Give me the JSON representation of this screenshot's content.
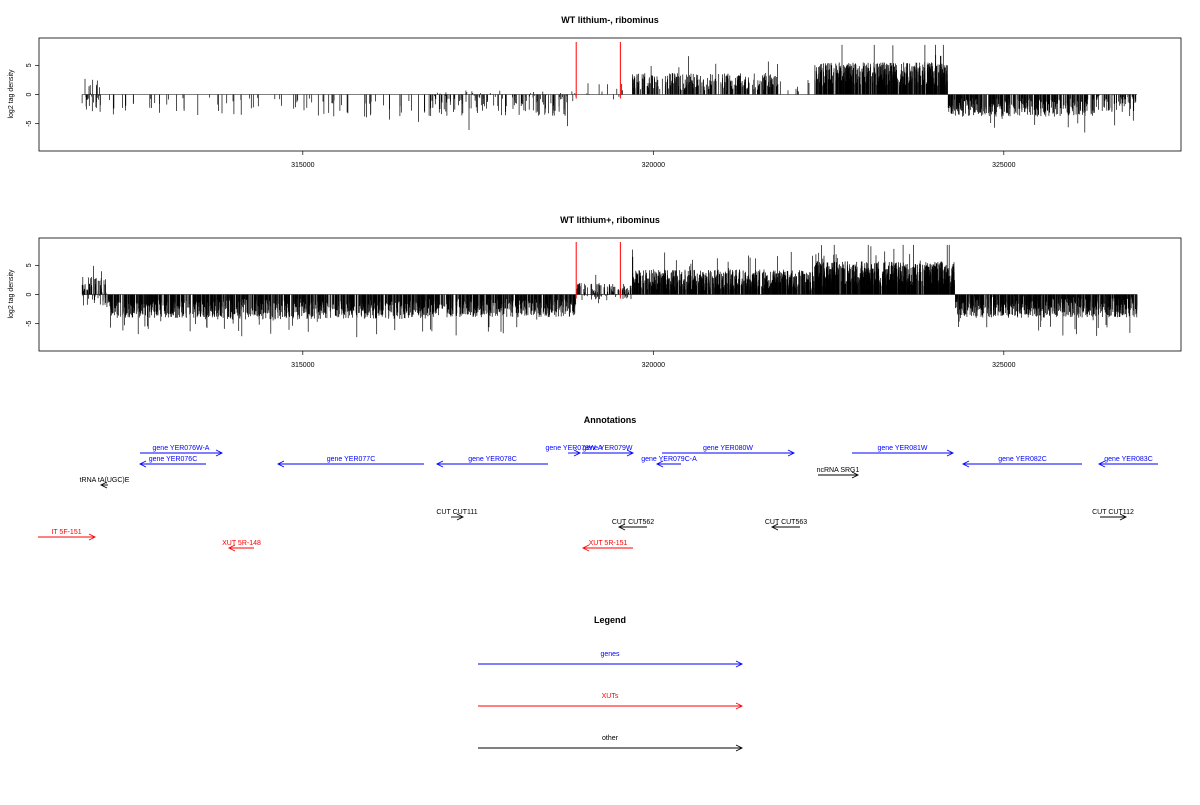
{
  "colors": {
    "gene": "#0000ff",
    "xut": "#ff0000",
    "other": "#000000",
    "marker": "#ff0000",
    "bars": "#000000"
  },
  "chart_data": [
    {
      "type": "bar",
      "title": "WT lithium-, ribominus",
      "ylabel": "log2 tag density",
      "x_ticks": [
        315000,
        320000,
        325000
      ],
      "y_ticks": [
        -5,
        0,
        5
      ],
      "xlim": [
        311600,
        327600
      ],
      "ylim": [
        -9,
        9
      ],
      "markers_x": [
        318900,
        319530
      ],
      "segments": [
        {
          "x0": 311850,
          "x1": 312100,
          "mean": 0,
          "amp": 3.5,
          "density": 3
        },
        {
          "x0": 312100,
          "x1": 313600,
          "mean": -2.2,
          "amp": 1.6,
          "density": 1
        },
        {
          "x0": 313600,
          "x1": 315200,
          "mean": -2.0,
          "amp": 1.5,
          "density": 1
        },
        {
          "x0": 315200,
          "x1": 316800,
          "mean": -2.5,
          "amp": 1.5,
          "density": 1
        },
        {
          "x0": 316800,
          "x1": 318900,
          "mean": -1.5,
          "amp": 2.2,
          "density": 2
        },
        {
          "x0": 318900,
          "x1": 319700,
          "mean": 0.5,
          "amp": 1.5,
          "density": 1
        },
        {
          "x0": 319700,
          "x1": 321800,
          "mean": 2.2,
          "amp": 1.5,
          "density": 4
        },
        {
          "x0": 321800,
          "x1": 322300,
          "mean": 1.5,
          "amp": 1.0,
          "density": 1
        },
        {
          "x0": 322300,
          "x1": 324200,
          "mean": 3.5,
          "amp": 2.0,
          "density": 8
        },
        {
          "x0": 324200,
          "x1": 326300,
          "mean": -2.2,
          "amp": 1.6,
          "density": 5
        },
        {
          "x0": 326300,
          "x1": 326900,
          "mean": -1.5,
          "amp": 1.5,
          "density": 3
        }
      ]
    },
    {
      "type": "bar",
      "title": "WT lithium+, ribominus",
      "ylabel": "log2 tag density",
      "x_ticks": [
        315000,
        320000,
        325000
      ],
      "y_ticks": [
        -5,
        0,
        5
      ],
      "xlim": [
        311600,
        327600
      ],
      "ylim": [
        -9,
        9
      ],
      "markers_x": [
        318900,
        319530
      ],
      "segments": [
        {
          "x0": 311850,
          "x1": 312200,
          "mean": 0.5,
          "amp": 2.5,
          "density": 6
        },
        {
          "x0": 312200,
          "x1": 313600,
          "mean": -2.5,
          "amp": 1.5,
          "density": 6
        },
        {
          "x0": 313600,
          "x1": 315200,
          "mean": -2.5,
          "amp": 1.8,
          "density": 6
        },
        {
          "x0": 315200,
          "x1": 316800,
          "mean": -2.6,
          "amp": 1.6,
          "density": 6
        },
        {
          "x0": 316800,
          "x1": 318900,
          "mean": -2.3,
          "amp": 1.6,
          "density": 6
        },
        {
          "x0": 318900,
          "x1": 319700,
          "mean": 0.5,
          "amp": 1.5,
          "density": 4
        },
        {
          "x0": 319700,
          "x1": 322300,
          "mean": 2.5,
          "amp": 1.8,
          "density": 8
        },
        {
          "x0": 322300,
          "x1": 324300,
          "mean": 3.5,
          "amp": 2.2,
          "density": 10
        },
        {
          "x0": 324300,
          "x1": 326900,
          "mean": -2.0,
          "amp": 2.0,
          "density": 8
        }
      ]
    }
  ],
  "annotations": {
    "title": "Annotations",
    "features": [
      {
        "label": "gene YER076W-A",
        "type": "gene",
        "x0": 140,
        "x1": 222,
        "dir": "right",
        "y": 453
      },
      {
        "label": "gene YER076C",
        "type": "gene",
        "x0": 140,
        "x1": 206,
        "dir": "left",
        "y": 464
      },
      {
        "label": "gene YER077C",
        "type": "gene",
        "x0": 278,
        "x1": 424,
        "dir": "left",
        "y": 464
      },
      {
        "label": "gene YER078C",
        "type": "gene",
        "x0": 437,
        "x1": 548,
        "dir": "left",
        "y": 464
      },
      {
        "label": "gene YER078W-A",
        "type": "gene",
        "x0": 568,
        "x1": 580,
        "dir": "right",
        "y": 453
      },
      {
        "label": "gene YER079W",
        "type": "gene",
        "x0": 582,
        "x1": 633,
        "dir": "right",
        "y": 453
      },
      {
        "label": "gene YER079C-A",
        "type": "gene",
        "x0": 657,
        "x1": 681,
        "dir": "left",
        "y": 464
      },
      {
        "label": "gene YER080W",
        "type": "gene",
        "x0": 662,
        "x1": 794,
        "dir": "right",
        "y": 453
      },
      {
        "label": "gene YER081W",
        "type": "gene",
        "x0": 852,
        "x1": 953,
        "dir": "right",
        "y": 453
      },
      {
        "label": "gene YER082C",
        "type": "gene",
        "x0": 963,
        "x1": 1082,
        "dir": "left",
        "y": 464
      },
      {
        "label": "gene YER083C",
        "type": "gene",
        "x0": 1099,
        "x1": 1158,
        "dir": "left",
        "y": 464
      },
      {
        "label": "tRNA tA(UGC)E",
        "type": "other",
        "x0": 101,
        "x1": 108,
        "dir": "left",
        "y": 485
      },
      {
        "label": "ncRNA SRG1",
        "type": "other",
        "x0": 818,
        "x1": 858,
        "dir": "right",
        "y": 475
      },
      {
        "label": "CUT CUT111",
        "type": "other",
        "x0": 451,
        "x1": 463,
        "dir": "right",
        "y": 517
      },
      {
        "label": "CUT CUT562",
        "type": "other",
        "x0": 619,
        "x1": 647,
        "dir": "left",
        "y": 527
      },
      {
        "label": "CUT CUT563",
        "type": "other",
        "x0": 772,
        "x1": 800,
        "dir": "left",
        "y": 527
      },
      {
        "label": "CUT CUT112",
        "type": "other",
        "x0": 1100,
        "x1": 1126,
        "dir": "right",
        "y": 517
      },
      {
        "label": "IT 5F-151",
        "type": "xut",
        "x0": 38,
        "x1": 95,
        "dir": "right",
        "y": 537
      },
      {
        "label": "XUT 5R-148",
        "type": "xut",
        "x0": 229,
        "x1": 254,
        "dir": "left",
        "y": 548
      },
      {
        "label": "XUT 5R-151",
        "type": "xut",
        "x0": 583,
        "x1": 633,
        "dir": "left",
        "y": 548
      }
    ]
  },
  "legend": {
    "title": "Legend",
    "items": [
      {
        "label": "genes",
        "type": "gene"
      },
      {
        "label": "XUTs",
        "type": "xut"
      },
      {
        "label": "other",
        "type": "other"
      }
    ]
  }
}
